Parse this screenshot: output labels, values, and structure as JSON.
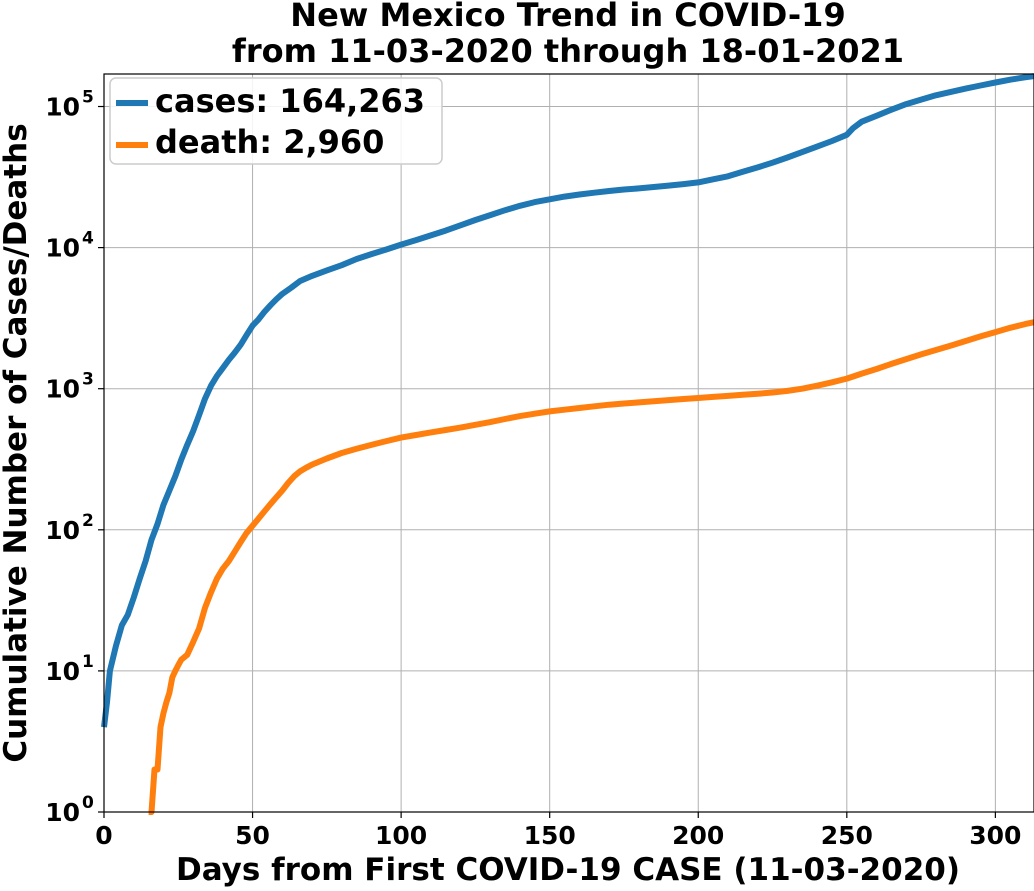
{
  "chart_data": {
    "type": "line",
    "title_line1": "New Mexico Trend in COVID-19",
    "title_line2": "from 11-03-2020 through 18-01-2021",
    "xlabel": "Days from First COVID-19 CASE (11-03-2020)",
    "ylabel": "Cumulative Number of Cases/Deaths",
    "x_scale": "linear",
    "y_scale": "log",
    "xlim": [
      0,
      313
    ],
    "ylim": [
      1,
      170000
    ],
    "grid": true,
    "legend_position": "top-left",
    "x_ticks": [
      {
        "value": 0,
        "label": "0"
      },
      {
        "value": 50,
        "label": "50"
      },
      {
        "value": 100,
        "label": "100"
      },
      {
        "value": 150,
        "label": "150"
      },
      {
        "value": 200,
        "label": "200"
      },
      {
        "value": 250,
        "label": "250"
      },
      {
        "value": 300,
        "label": "300"
      }
    ],
    "y_ticks": [
      {
        "value": 1,
        "base": "10",
        "exp": "0"
      },
      {
        "value": 10,
        "base": "10",
        "exp": "1"
      },
      {
        "value": 100,
        "base": "10",
        "exp": "2"
      },
      {
        "value": 1000,
        "base": "10",
        "exp": "3"
      },
      {
        "value": 10000,
        "base": "10",
        "exp": "4"
      },
      {
        "value": 100000,
        "base": "10",
        "exp": "5"
      }
    ],
    "series": [
      {
        "name": "cases: 164,263",
        "color": "#1f77b4",
        "points": [
          [
            0,
            4
          ],
          [
            1,
            6
          ],
          [
            2,
            10
          ],
          [
            4,
            15
          ],
          [
            6,
            21
          ],
          [
            8,
            25
          ],
          [
            10,
            33
          ],
          [
            12,
            45
          ],
          [
            14,
            60
          ],
          [
            16,
            85
          ],
          [
            18,
            110
          ],
          [
            20,
            150
          ],
          [
            22,
            190
          ],
          [
            24,
            240
          ],
          [
            26,
            315
          ],
          [
            28,
            400
          ],
          [
            30,
            500
          ],
          [
            32,
            650
          ],
          [
            34,
            850
          ],
          [
            36,
            1050
          ],
          [
            38,
            1230
          ],
          [
            40,
            1400
          ],
          [
            42,
            1600
          ],
          [
            44,
            1800
          ],
          [
            46,
            2050
          ],
          [
            48,
            2400
          ],
          [
            50,
            2800
          ],
          [
            52,
            3100
          ],
          [
            54,
            3500
          ],
          [
            56,
            3900
          ],
          [
            58,
            4300
          ],
          [
            60,
            4700
          ],
          [
            63,
            5200
          ],
          [
            66,
            5800
          ],
          [
            70,
            6300
          ],
          [
            75,
            6900
          ],
          [
            80,
            7500
          ],
          [
            85,
            8300
          ],
          [
            90,
            9000
          ],
          [
            95,
            9700
          ],
          [
            100,
            10500
          ],
          [
            105,
            11300
          ],
          [
            110,
            12200
          ],
          [
            115,
            13200
          ],
          [
            120,
            14400
          ],
          [
            125,
            15700
          ],
          [
            130,
            17000
          ],
          [
            135,
            18400
          ],
          [
            140,
            19800
          ],
          [
            145,
            21000
          ],
          [
            150,
            22000
          ],
          [
            155,
            23000
          ],
          [
            160,
            23800
          ],
          [
            165,
            24500
          ],
          [
            170,
            25200
          ],
          [
            175,
            25800
          ],
          [
            180,
            26300
          ],
          [
            185,
            26900
          ],
          [
            190,
            27500
          ],
          [
            195,
            28200
          ],
          [
            200,
            29000
          ],
          [
            205,
            30500
          ],
          [
            210,
            32000
          ],
          [
            215,
            34500
          ],
          [
            220,
            37000
          ],
          [
            225,
            40000
          ],
          [
            230,
            43500
          ],
          [
            235,
            47500
          ],
          [
            240,
            52000
          ],
          [
            245,
            57000
          ],
          [
            250,
            63000
          ],
          [
            252,
            70000
          ],
          [
            255,
            78000
          ],
          [
            260,
            86000
          ],
          [
            265,
            95000
          ],
          [
            270,
            104000
          ],
          [
            275,
            112000
          ],
          [
            280,
            120000
          ],
          [
            285,
            127000
          ],
          [
            290,
            134000
          ],
          [
            295,
            141000
          ],
          [
            300,
            148000
          ],
          [
            305,
            155000
          ],
          [
            310,
            161000
          ],
          [
            313,
            164263
          ]
        ]
      },
      {
        "name": "death: 2,960",
        "color": "#ff7f0e",
        "points": [
          [
            15,
            1
          ],
          [
            16,
            1
          ],
          [
            17,
            2
          ],
          [
            18,
            2
          ],
          [
            19,
            4
          ],
          [
            20,
            5
          ],
          [
            21,
            6
          ],
          [
            22,
            7
          ],
          [
            23,
            9
          ],
          [
            24,
            10
          ],
          [
            25,
            11
          ],
          [
            26,
            12
          ],
          [
            28,
            13
          ],
          [
            30,
            16
          ],
          [
            32,
            20
          ],
          [
            34,
            28
          ],
          [
            36,
            36
          ],
          [
            38,
            45
          ],
          [
            40,
            53
          ],
          [
            42,
            60
          ],
          [
            44,
            70
          ],
          [
            46,
            82
          ],
          [
            48,
            95
          ],
          [
            50,
            107
          ],
          [
            52,
            120
          ],
          [
            54,
            135
          ],
          [
            56,
            152
          ],
          [
            58,
            170
          ],
          [
            60,
            190
          ],
          [
            62,
            215
          ],
          [
            64,
            240
          ],
          [
            66,
            260
          ],
          [
            68,
            275
          ],
          [
            70,
            290
          ],
          [
            75,
            320
          ],
          [
            80,
            350
          ],
          [
            85,
            375
          ],
          [
            90,
            400
          ],
          [
            95,
            425
          ],
          [
            100,
            450
          ],
          [
            105,
            470
          ],
          [
            110,
            490
          ],
          [
            115,
            510
          ],
          [
            120,
            530
          ],
          [
            125,
            555
          ],
          [
            130,
            580
          ],
          [
            135,
            610
          ],
          [
            140,
            640
          ],
          [
            145,
            665
          ],
          [
            150,
            690
          ],
          [
            155,
            710
          ],
          [
            160,
            730
          ],
          [
            165,
            750
          ],
          [
            170,
            770
          ],
          [
            175,
            785
          ],
          [
            180,
            800
          ],
          [
            185,
            815
          ],
          [
            190,
            830
          ],
          [
            195,
            845
          ],
          [
            200,
            860
          ],
          [
            205,
            875
          ],
          [
            210,
            890
          ],
          [
            215,
            905
          ],
          [
            220,
            920
          ],
          [
            225,
            940
          ],
          [
            230,
            965
          ],
          [
            235,
            1000
          ],
          [
            240,
            1050
          ],
          [
            245,
            1110
          ],
          [
            250,
            1180
          ],
          [
            255,
            1280
          ],
          [
            260,
            1380
          ],
          [
            265,
            1500
          ],
          [
            270,
            1620
          ],
          [
            275,
            1750
          ],
          [
            280,
            1880
          ],
          [
            285,
            2020
          ],
          [
            290,
            2180
          ],
          [
            295,
            2350
          ],
          [
            300,
            2520
          ],
          [
            305,
            2700
          ],
          [
            310,
            2870
          ],
          [
            313,
            2960
          ]
        ]
      }
    ]
  }
}
